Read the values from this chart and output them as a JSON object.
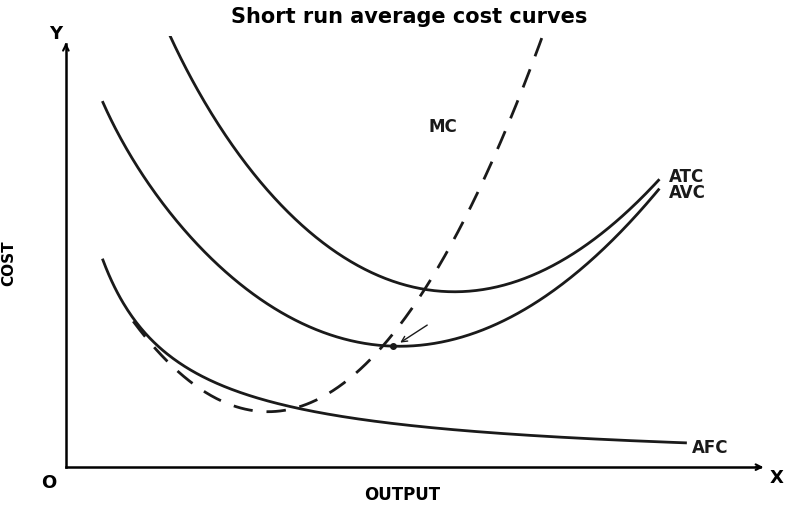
{
  "title": "Short run average cost curves",
  "title_fontsize": 15,
  "title_fontweight": "bold",
  "xlabel": "OUTPUT",
  "ylabel": "COST",
  "x_axis_label": "X",
  "y_axis_label": "Y",
  "origin_label": "O",
  "background_color": "#ffffff",
  "curve_color": "#1a1a1a",
  "label_ATC": "ATC",
  "label_AVC": "AVC",
  "label_AFC": "AFC",
  "label_MC": "MC",
  "xlim": [
    0,
    10
  ],
  "ylim": [
    0,
    10
  ]
}
